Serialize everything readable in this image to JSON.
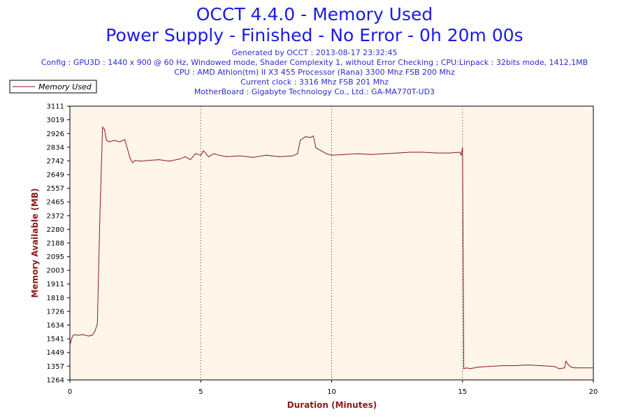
{
  "header": {
    "title_line1": "OCCT 4.4.0 - Memory Used",
    "title_line2": "Power Supply - Finished - No Error - 0h 20m 00s",
    "generated": "Generated by OCCT : 2013-08-17 23:32:45",
    "config": "Config : GPU3D : 1440 x 900 @ 60 Hz, Windowed mode, Shader Complexity 1, without Error Checking ; CPU:Linpack : 32bits mode, 1412,1MB",
    "cpu": "CPU : AMD Athlon(tm) II X3 455 Processor (Rana) 3300 Mhz FSB 200 Mhz",
    "clock": "Current clock : 3316 Mhz FSB 201 Mhz",
    "motherboard": "MotherBoard : Gigabyte Technology Co., Ltd.: GA-MA770T-UD3"
  },
  "colors": {
    "title": "#1a1ae6",
    "info": "#2b2bd0",
    "series": "#8b1a1a",
    "plot_background": "#fff5e8",
    "axis_title": "#8b1a1a"
  },
  "chart_data": {
    "type": "line",
    "xlabel": "Duration (Minutes)",
    "ylabel": "Memory Available (MB)",
    "xlim": [
      0,
      20
    ],
    "ylim": [
      1264,
      3111
    ],
    "xticks": [
      0,
      5,
      10,
      15,
      20
    ],
    "yticks": [
      1264,
      1357,
      1449,
      1541,
      1634,
      1726,
      1818,
      1911,
      2003,
      2095,
      2188,
      2280,
      2372,
      2465,
      2557,
      2649,
      2742,
      2834,
      2926,
      3019,
      3111
    ],
    "grid": "vertical dotted at 5, 10, 15",
    "legend_position": "top-left",
    "series": [
      {
        "name": "Memory Used",
        "x": [
          0,
          0.1,
          0.2,
          0.3,
          0.5,
          0.7,
          0.85,
          0.95,
          1.05,
          1.15,
          1.25,
          1.32,
          1.4,
          1.5,
          1.7,
          1.9,
          2.1,
          2.3,
          2.4,
          2.5,
          2.7,
          3.0,
          3.4,
          3.8,
          4.2,
          4.4,
          4.6,
          4.8,
          5.0,
          5.1,
          5.3,
          5.5,
          5.7,
          6.0,
          6.5,
          7.0,
          7.5,
          8.0,
          8.5,
          8.7,
          8.8,
          9.0,
          9.2,
          9.3,
          9.4,
          9.6,
          9.8,
          10.0,
          10.5,
          11.0,
          11.5,
          12.0,
          12.5,
          13.0,
          13.5,
          14.0,
          14.5,
          14.9,
          14.95,
          15.0,
          15.05,
          15.15,
          15.3,
          15.6,
          16.0,
          16.5,
          17.0,
          17.5,
          18.0,
          18.5,
          18.7,
          18.9,
          18.95,
          19.05,
          19.15,
          19.3,
          19.6,
          20.0
        ],
        "values": [
          1500,
          1560,
          1570,
          1565,
          1570,
          1560,
          1565,
          1590,
          1640,
          2400,
          2970,
          2955,
          2880,
          2870,
          2880,
          2870,
          2885,
          2760,
          2730,
          2745,
          2740,
          2745,
          2750,
          2740,
          2755,
          2770,
          2750,
          2790,
          2780,
          2810,
          2770,
          2790,
          2780,
          2770,
          2775,
          2765,
          2780,
          2770,
          2775,
          2790,
          2880,
          2905,
          2900,
          2910,
          2830,
          2810,
          2790,
          2780,
          2785,
          2790,
          2785,
          2790,
          2795,
          2800,
          2800,
          2795,
          2795,
          2800,
          2780,
          2830,
          1340,
          1345,
          1340,
          1350,
          1355,
          1360,
          1360,
          1365,
          1360,
          1355,
          1340,
          1345,
          1390,
          1365,
          1350,
          1345,
          1345,
          1345
        ]
      }
    ]
  }
}
